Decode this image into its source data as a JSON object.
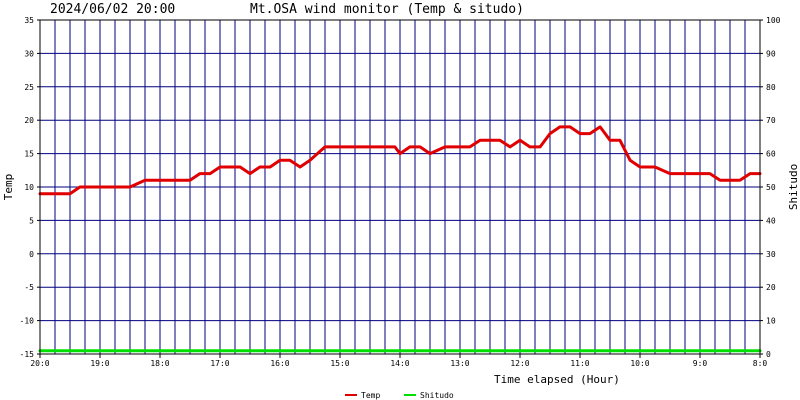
{
  "chart_data": {
    "type": "line",
    "timestamp": "2024/06/02 20:00",
    "title": "Mt.OSA wind monitor (Temp & situdo)",
    "xlabel": "Time elapsed (Hour)",
    "ylabel_left": "Temp",
    "ylabel_right": "Shitudo",
    "ylim_left": [
      -15,
      35
    ],
    "ylim_right": [
      0,
      100
    ],
    "yticks_left": [
      "35",
      "30",
      "25",
      "20",
      "15",
      "10",
      "5",
      "0",
      "-5",
      "-10",
      "-15"
    ],
    "yticks_right": [
      "100",
      "90",
      "80",
      "70",
      "60",
      "50",
      "40",
      "30",
      "20",
      "10",
      "0"
    ],
    "xlim": [
      0,
      24
    ],
    "x_tick_labels": [
      "20:0",
      "19:0",
      "18:0",
      "17:0",
      "16:0",
      "15:0",
      "14:0",
      "13:0",
      "12:0",
      "11:0",
      "10:0",
      "9:0",
      "8:0"
    ],
    "grid": true,
    "colors": {
      "background": "#ffffff",
      "grid_major": "#000080",
      "grid_minor": "#000080",
      "frame": "#000000",
      "temp": "#e00000",
      "shitudo": "#00e000"
    },
    "series": [
      {
        "name": "Temp",
        "axis": "left",
        "color": "#e00000",
        "x": [
          0,
          0.5,
          1,
          1.33,
          1.67,
          2,
          2.5,
          3,
          3.5,
          3.67,
          4,
          4.5,
          5,
          5.33,
          5.67,
          6,
          6.33,
          6.67,
          7,
          7.33,
          7.67,
          8,
          8.33,
          8.67,
          9,
          9.5,
          10,
          10.5,
          11,
          11.5,
          11.83,
          12,
          12.33,
          12.67,
          13,
          13.5,
          14,
          14.33,
          14.67,
          15,
          15.33,
          15.67,
          16,
          16.33,
          16.67,
          17,
          17.33,
          17.67,
          18,
          18.33,
          18.67,
          19,
          19.33,
          19.67,
          20,
          20.5,
          21,
          21.5,
          22,
          22.33,
          22.67,
          23,
          23.33,
          23.67,
          24
        ],
        "values": [
          9,
          9,
          9,
          10,
          10,
          10,
          10,
          10,
          11,
          11,
          11,
          11,
          11,
          12,
          12,
          13,
          13,
          13,
          12,
          13,
          13,
          14,
          14,
          13,
          14,
          16,
          16,
          16,
          16,
          16,
          16,
          15,
          16,
          16,
          15,
          16,
          16,
          16,
          17,
          17,
          17,
          16,
          17,
          16,
          16,
          18,
          19,
          19,
          18,
          18,
          19,
          17,
          17,
          14,
          13,
          13,
          12,
          12,
          12,
          12,
          11,
          11,
          11,
          12,
          12
        ]
      },
      {
        "name": "Shitudo",
        "axis": "right",
        "color": "#00e000",
        "x": [
          0,
          24
        ],
        "values": [
          1,
          1
        ]
      }
    ],
    "legend": {
      "placement": "bottom-center",
      "entries": [
        "Temp",
        "Shitudo"
      ]
    }
  }
}
